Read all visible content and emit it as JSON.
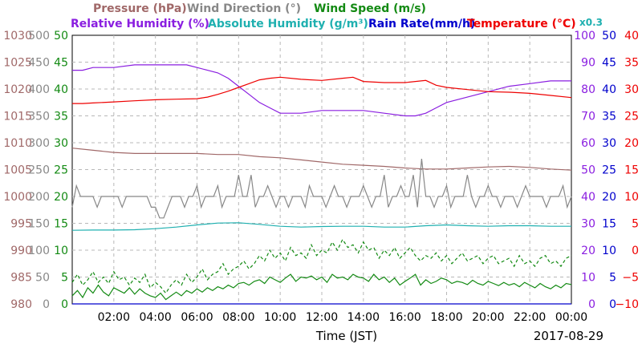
{
  "chart_data": {
    "type": "line",
    "date_label": "2017-08-29",
    "xlabel": "Time (JST)",
    "x_range": [
      "00:00",
      "24:00"
    ],
    "x_ticks": [
      "02:00",
      "04:00",
      "06:00",
      "08:00",
      "10:00",
      "12:00",
      "14:00",
      "16:00",
      "18:00",
      "20:00",
      "22:00",
      "00:00"
    ],
    "grid": true,
    "legend": {
      "row1": [
        {
          "label": "Pressure (hPa)",
          "color": "#a06868"
        },
        {
          "label": "Wind Direction (°)",
          "color": "#888888"
        },
        {
          "label": "Wind Speed (m/s)",
          "color": "#138a13"
        }
      ],
      "row2": [
        {
          "label": "Relative Humidity (%)",
          "color": "#8a1ee0"
        },
        {
          "label": "Absolute Humidity (g/m³)",
          "color": "#1fb0b0"
        },
        {
          "label": "Rain Rate(mm/h)",
          "color": "#0000cc"
        },
        {
          "label": "Temperature (°C)",
          "color": "#ee0000"
        }
      ],
      "factor_label": "x0.3",
      "factor_color": "#1fb0b0"
    },
    "axes": {
      "pressure": {
        "label_ticks": [
          "1030",
          "1025",
          "1020",
          "1015",
          "1010",
          "1005",
          "1000",
          "995",
          "990",
          "985",
          "980"
        ],
        "range": [
          980,
          1030
        ],
        "color": "#a06868"
      },
      "wind_direction": {
        "label_ticks": [
          "500",
          "450",
          "400",
          "350",
          "300",
          "250",
          "200",
          "150",
          "100",
          "50",
          "0"
        ],
        "range": [
          0,
          500
        ],
        "color": "#888888"
      },
      "wind_speed": {
        "label_ticks": [
          "50",
          "45",
          "40",
          "35",
          "30",
          "25",
          "20",
          "15",
          "10",
          "5",
          "0"
        ],
        "range": [
          0,
          50
        ],
        "color": "#138a13"
      },
      "humidity": {
        "label_ticks": [
          "100",
          "90",
          "80",
          "70",
          "60",
          "50",
          "40",
          "30",
          "20",
          "10",
          "0"
        ],
        "range": [
          0,
          100
        ],
        "color": "#8a1ee0"
      },
      "rain_rate": {
        "label_ticks": [
          "50",
          "45",
          "40",
          "35",
          "30",
          "25",
          "20",
          "15",
          "10",
          "5",
          "0"
        ],
        "range": [
          0,
          50
        ],
        "color": "#0000cc"
      },
      "temperature": {
        "label_ticks": [
          "40",
          "35",
          "30",
          "25",
          "20",
          "15",
          "10",
          "5",
          "0",
          "−5",
          "−10"
        ],
        "range": [
          -10,
          40
        ],
        "color": "#ee0000"
      }
    },
    "series": [
      {
        "name": "Pressure (hPa)",
        "color": "#a06868",
        "style": "solid",
        "x": [
          0,
          1,
          2,
          3,
          4,
          5,
          6,
          7,
          8,
          9,
          10,
          11,
          12,
          13,
          14,
          15,
          16,
          17,
          18,
          19,
          20,
          21,
          22,
          23,
          24
        ],
        "values": [
          1009.0,
          1008.6,
          1008.2,
          1008.0,
          1008.0,
          1008.0,
          1008.0,
          1007.8,
          1007.8,
          1007.4,
          1007.2,
          1006.8,
          1006.4,
          1006.0,
          1005.8,
          1005.6,
          1005.3,
          1005.1,
          1005.1,
          1005.3,
          1005.5,
          1005.6,
          1005.4,
          1005.1,
          1004.9
        ]
      },
      {
        "name": "Relative Humidity (%)",
        "color": "#8a1ee0",
        "style": "solid",
        "x": [
          0,
          0.5,
          1,
          2,
          3,
          4,
          5,
          5.5,
          6,
          6.5,
          7,
          7.5,
          8,
          8.5,
          9,
          9.5,
          10,
          11,
          12,
          13,
          14,
          15,
          16,
          16.5,
          17,
          17.5,
          18,
          19,
          20,
          21,
          22,
          23,
          24
        ],
        "values": [
          87,
          87,
          88,
          88,
          89,
          89,
          89,
          89,
          88,
          87,
          86,
          84,
          81,
          78,
          75,
          73,
          71,
          71,
          72,
          72,
          72,
          71,
          70,
          70,
          71,
          73,
          75,
          77,
          79,
          81,
          82,
          83,
          83
        ]
      },
      {
        "name": "Temperature (°C)",
        "color": "#ee0000",
        "style": "solid",
        "x": [
          0,
          0.5,
          1,
          2,
          3,
          4,
          5,
          6,
          6.5,
          7,
          7.5,
          8,
          8.5,
          9,
          9.5,
          10,
          11,
          12,
          13,
          13.5,
          14,
          15,
          16,
          17,
          17.5,
          18,
          19,
          20,
          21,
          22,
          23,
          24
        ],
        "values": [
          27.3,
          27.3,
          27.4,
          27.6,
          27.8,
          28.0,
          28.1,
          28.2,
          28.5,
          29.0,
          29.6,
          30.3,
          31.0,
          31.7,
          32.0,
          32.2,
          31.8,
          31.6,
          32.0,
          32.2,
          31.4,
          31.2,
          31.2,
          31.6,
          30.7,
          30.3,
          29.9,
          29.5,
          29.4,
          29.2,
          28.8,
          28.4
        ]
      },
      {
        "name": "Absolute Humidity (g/m³)",
        "color": "#1fb0b0",
        "style": "solid",
        "scale": 0.3,
        "x": [
          0,
          1,
          2,
          3,
          4,
          5,
          6,
          7,
          8,
          9,
          10,
          11,
          12,
          13,
          14,
          15,
          16,
          17,
          18,
          19,
          20,
          21,
          22,
          23,
          24
        ],
        "values": [
          27.4,
          27.5,
          27.5,
          27.6,
          28.0,
          28.6,
          29.4,
          30.1,
          30.2,
          29.6,
          28.9,
          28.6,
          28.8,
          28.9,
          28.9,
          28.6,
          28.6,
          29.1,
          29.4,
          29.1,
          28.9,
          29.1,
          29.1,
          28.9,
          28.9
        ]
      },
      {
        "name": "Wind Direction (°)",
        "color": "#888888",
        "style": "solid",
        "x": [
          0,
          0.2,
          0.4,
          0.6,
          0.8,
          1,
          1.2,
          1.4,
          1.6,
          1.8,
          2,
          2.2,
          2.4,
          2.6,
          2.8,
          3,
          3.2,
          3.4,
          3.6,
          3.8,
          4,
          4.2,
          4.4,
          4.6,
          4.8,
          5,
          5.2,
          5.4,
          5.6,
          5.8,
          6,
          6.2,
          6.4,
          6.6,
          6.8,
          7,
          7.2,
          7.4,
          7.6,
          7.8,
          8,
          8.2,
          8.4,
          8.6,
          8.8,
          9,
          9.2,
          9.4,
          9.6,
          9.8,
          10,
          10.2,
          10.4,
          10.6,
          10.8,
          11,
          11.2,
          11.4,
          11.6,
          11.8,
          12,
          12.2,
          12.4,
          12.6,
          12.8,
          13,
          13.2,
          13.4,
          13.6,
          13.8,
          14,
          14.2,
          14.4,
          14.6,
          14.8,
          15,
          15.2,
          15.4,
          15.6,
          15.8,
          16,
          16.2,
          16.4,
          16.6,
          16.8,
          17,
          17.2,
          17.4,
          17.6,
          17.8,
          18,
          18.2,
          18.4,
          18.6,
          18.8,
          19,
          19.2,
          19.4,
          19.6,
          19.8,
          20,
          20.2,
          20.4,
          20.6,
          20.8,
          21,
          21.2,
          21.4,
          21.6,
          21.8,
          22,
          22.2,
          22.4,
          22.6,
          22.8,
          23,
          23.2,
          23.4,
          23.6,
          23.8,
          24
        ],
        "values": [
          180,
          220,
          200,
          200,
          200,
          200,
          180,
          200,
          200,
          200,
          200,
          200,
          180,
          200,
          200,
          200,
          200,
          200,
          200,
          180,
          180,
          160,
          160,
          180,
          200,
          200,
          200,
          180,
          200,
          200,
          220,
          180,
          200,
          200,
          200,
          220,
          180,
          200,
          200,
          200,
          240,
          200,
          200,
          240,
          180,
          200,
          200,
          220,
          200,
          180,
          200,
          200,
          180,
          200,
          200,
          200,
          180,
          220,
          200,
          200,
          200,
          180,
          200,
          220,
          200,
          200,
          180,
          200,
          200,
          200,
          220,
          200,
          180,
          200,
          200,
          240,
          180,
          200,
          200,
          220,
          200,
          200,
          240,
          180,
          270,
          200,
          200,
          180,
          200,
          200,
          220,
          180,
          200,
          200,
          200,
          240,
          200,
          180,
          200,
          200,
          220,
          200,
          200,
          180,
          200,
          200,
          200,
          180,
          200,
          220,
          200,
          200,
          200,
          200,
          180,
          200,
          200,
          200,
          220,
          180,
          200
        ]
      },
      {
        "name": "Wind Speed (m/s)",
        "color": "#138a13",
        "style": "solid",
        "x": [
          0,
          0.25,
          0.5,
          0.75,
          1,
          1.25,
          1.5,
          1.75,
          2,
          2.25,
          2.5,
          2.75,
          3,
          3.25,
          3.5,
          3.75,
          4,
          4.25,
          4.5,
          4.75,
          5,
          5.25,
          5.5,
          5.75,
          6,
          6.25,
          6.5,
          6.75,
          7,
          7.25,
          7.5,
          7.75,
          8,
          8.25,
          8.5,
          8.75,
          9,
          9.25,
          9.5,
          9.75,
          10,
          10.25,
          10.5,
          10.75,
          11,
          11.25,
          11.5,
          11.75,
          12,
          12.25,
          12.5,
          12.75,
          13,
          13.25,
          13.5,
          13.75,
          14,
          14.25,
          14.5,
          14.75,
          15,
          15.25,
          15.5,
          15.75,
          16,
          16.25,
          16.5,
          16.75,
          17,
          17.25,
          17.5,
          17.75,
          18,
          18.25,
          18.5,
          18.75,
          19,
          19.25,
          19.5,
          19.75,
          20,
          20.25,
          20.5,
          20.75,
          21,
          21.25,
          21.5,
          21.75,
          22,
          22.25,
          22.5,
          22.75,
          23,
          23.25,
          23.5,
          23.75,
          24
        ],
        "values": [
          1.5,
          2.5,
          1.2,
          3.0,
          2.0,
          3.5,
          2.2,
          1.5,
          3.0,
          2.5,
          2.0,
          3.0,
          1.8,
          2.8,
          2.0,
          1.5,
          1.2,
          2.0,
          0.8,
          1.5,
          2.2,
          1.5,
          2.5,
          2.0,
          2.8,
          2.2,
          3.0,
          2.5,
          3.2,
          2.8,
          3.5,
          3.0,
          3.8,
          4.0,
          3.5,
          4.2,
          4.5,
          3.8,
          5.0,
          4.5,
          4.0,
          4.8,
          5.5,
          4.2,
          5.0,
          4.8,
          5.2,
          4.5,
          5.0,
          4.0,
          5.5,
          4.8,
          5.0,
          4.5,
          5.5,
          5.0,
          4.8,
          4.2,
          5.5,
          4.5,
          5.0,
          4.0,
          4.8,
          3.5,
          4.2,
          4.8,
          5.5,
          3.5,
          4.5,
          3.8,
          4.2,
          4.8,
          4.5,
          3.8,
          4.2,
          4.0,
          3.6,
          4.4,
          3.8,
          3.5,
          4.2,
          3.8,
          3.4,
          4.0,
          3.5,
          3.8,
          3.2,
          4.0,
          3.5,
          3.0,
          3.8,
          3.2,
          2.8,
          3.5,
          3.0,
          3.8,
          3.6
        ]
      },
      {
        "name": "Wind Speed (m/s) gust",
        "color": "#138a13",
        "style": "dashed",
        "x": [
          0,
          0.25,
          0.5,
          0.75,
          1,
          1.25,
          1.5,
          1.75,
          2,
          2.25,
          2.5,
          2.75,
          3,
          3.25,
          3.5,
          3.75,
          4,
          4.25,
          4.5,
          4.75,
          5,
          5.25,
          5.5,
          5.75,
          6,
          6.25,
          6.5,
          6.75,
          7,
          7.25,
          7.5,
          7.75,
          8,
          8.25,
          8.5,
          8.75,
          9,
          9.25,
          9.5,
          9.75,
          10,
          10.25,
          10.5,
          10.75,
          11,
          11.25,
          11.5,
          11.75,
          12,
          12.25,
          12.5,
          12.75,
          13,
          13.25,
          13.5,
          13.75,
          14,
          14.25,
          14.5,
          14.75,
          15,
          15.25,
          15.5,
          15.75,
          16,
          16.25,
          16.5,
          16.75,
          17,
          17.25,
          17.5,
          17.75,
          18,
          18.25,
          18.5,
          18.75,
          19,
          19.25,
          19.5,
          19.75,
          20,
          20.25,
          20.5,
          20.75,
          21,
          21.25,
          21.5,
          21.75,
          22,
          22.25,
          22.5,
          22.75,
          23,
          23.25,
          23.5,
          23.75,
          24
        ],
        "values": [
          4.0,
          5.5,
          3.5,
          4.5,
          6.0,
          4.0,
          5.0,
          3.8,
          6.0,
          4.5,
          5.0,
          3.5,
          4.8,
          4.0,
          5.5,
          3.0,
          4.0,
          3.2,
          2.0,
          3.5,
          4.5,
          3.5,
          5.5,
          4.0,
          5.0,
          6.5,
          4.5,
          5.5,
          6.0,
          7.5,
          5.5,
          6.5,
          7.0,
          8.0,
          6.5,
          7.5,
          9.0,
          8.0,
          10.0,
          8.5,
          9.5,
          8.0,
          10.5,
          9.0,
          9.5,
          8.5,
          11.0,
          9.0,
          10.0,
          9.5,
          11.5,
          10.0,
          12.0,
          10.5,
          11.0,
          9.5,
          11.5,
          10.0,
          10.5,
          8.5,
          10.0,
          9.0,
          10.5,
          8.5,
          9.5,
          10.5,
          9.0,
          8.0,
          9.0,
          8.5,
          9.5,
          8.0,
          9.0,
          7.5,
          8.5,
          9.5,
          8.0,
          8.5,
          9.0,
          7.5,
          8.5,
          9.0,
          7.5,
          8.0,
          8.5,
          7.0,
          9.0,
          7.5,
          8.0,
          7.0,
          8.5,
          9.0,
          7.5,
          8.0,
          7.0,
          8.5,
          9.0
        ]
      },
      {
        "name": "Rain Rate(mm/h)",
        "color": "#0000cc",
        "style": "solid",
        "x": [
          0,
          24
        ],
        "values": [
          0,
          0
        ]
      }
    ]
  }
}
